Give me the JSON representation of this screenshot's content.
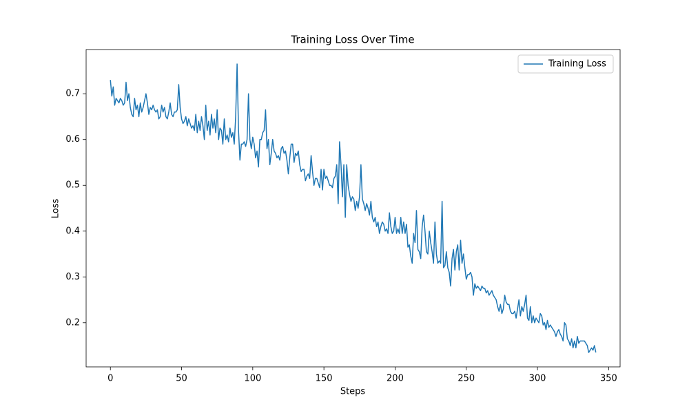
{
  "chart_data": {
    "type": "line",
    "title": "Training Loss Over Time",
    "xlabel": "Steps",
    "ylabel": "Loss",
    "x": [
      0,
      1,
      2,
      3,
      4,
      5,
      6,
      7,
      8,
      9,
      10,
      11,
      12,
      13,
      14,
      15,
      16,
      17,
      18,
      19,
      20,
      21,
      22,
      23,
      24,
      25,
      26,
      27,
      28,
      29,
      30,
      31,
      32,
      33,
      34,
      35,
      36,
      37,
      38,
      39,
      40,
      41,
      42,
      43,
      44,
      45,
      46,
      47,
      48,
      49,
      50,
      51,
      52,
      53,
      54,
      55,
      56,
      57,
      58,
      59,
      60,
      61,
      62,
      63,
      64,
      65,
      66,
      67,
      68,
      69,
      70,
      71,
      72,
      73,
      74,
      75,
      76,
      77,
      78,
      79,
      80,
      81,
      82,
      83,
      84,
      85,
      86,
      87,
      88,
      89,
      90,
      91,
      92,
      93,
      94,
      95,
      96,
      97,
      98,
      99,
      100,
      101,
      102,
      103,
      104,
      105,
      106,
      107,
      108,
      109,
      110,
      111,
      112,
      113,
      114,
      115,
      116,
      117,
      118,
      119,
      120,
      121,
      122,
      123,
      124,
      125,
      126,
      127,
      128,
      129,
      130,
      131,
      132,
      133,
      134,
      135,
      136,
      137,
      138,
      139,
      140,
      141,
      142,
      143,
      144,
      145,
      146,
      147,
      148,
      149,
      150,
      151,
      152,
      153,
      154,
      155,
      156,
      157,
      158,
      159,
      160,
      161,
      162,
      163,
      164,
      165,
      166,
      167,
      168,
      169,
      170,
      171,
      172,
      173,
      174,
      175,
      176,
      177,
      178,
      179,
      180,
      181,
      182,
      183,
      184,
      185,
      186,
      187,
      188,
      189,
      190,
      191,
      192,
      193,
      194,
      195,
      196,
      197,
      198,
      199,
      200,
      201,
      202,
      203,
      204,
      205,
      206,
      207,
      208,
      209,
      210,
      211,
      212,
      213,
      214,
      215,
      216,
      217,
      218,
      219,
      220,
      221,
      222,
      223,
      224,
      225,
      226,
      227,
      228,
      229,
      230,
      231,
      232,
      233,
      234,
      235,
      236,
      237,
      238,
      239,
      240,
      241,
      242,
      243,
      244,
      245,
      246,
      247,
      248,
      249,
      250,
      251,
      252,
      253,
      254,
      255,
      256,
      257,
      258,
      259,
      260,
      261,
      262,
      263,
      264,
      265,
      266,
      267,
      268,
      269,
      270,
      271,
      272,
      273,
      274,
      275,
      276,
      277,
      278,
      279,
      280,
      281,
      282,
      283,
      284,
      285,
      286,
      287,
      288,
      289,
      290,
      291,
      292,
      293,
      294,
      295,
      296,
      297,
      298,
      299,
      300,
      301,
      302,
      303,
      304,
      305,
      306,
      307,
      308,
      309,
      310,
      311,
      312,
      313,
      314,
      315,
      316,
      317,
      318,
      319,
      320,
      321,
      322,
      323,
      324,
      325,
      326,
      327,
      328,
      329,
      330,
      331,
      332,
      333,
      334,
      335,
      336,
      337,
      338,
      339,
      340,
      341
    ],
    "series": [
      {
        "name": "Training Loss",
        "color": "#1f77b4",
        "values": [
          0.73,
          0.695,
          0.715,
          0.675,
          0.69,
          0.685,
          0.68,
          0.69,
          0.685,
          0.675,
          0.68,
          0.725,
          0.685,
          0.7,
          0.67,
          0.655,
          0.65,
          0.69,
          0.665,
          0.675,
          0.65,
          0.68,
          0.66,
          0.67,
          0.685,
          0.7,
          0.68,
          0.655,
          0.67,
          0.665,
          0.675,
          0.665,
          0.66,
          0.665,
          0.645,
          0.65,
          0.675,
          0.66,
          0.67,
          0.65,
          0.645,
          0.66,
          0.68,
          0.655,
          0.65,
          0.66,
          0.66,
          0.665,
          0.72,
          0.67,
          0.645,
          0.635,
          0.64,
          0.65,
          0.63,
          0.645,
          0.635,
          0.625,
          0.63,
          0.62,
          0.655,
          0.615,
          0.64,
          0.62,
          0.65,
          0.63,
          0.6,
          0.675,
          0.62,
          0.64,
          0.61,
          0.655,
          0.625,
          0.645,
          0.615,
          0.665,
          0.6,
          0.625,
          0.62,
          0.59,
          0.645,
          0.6,
          0.61,
          0.595,
          0.625,
          0.605,
          0.615,
          0.59,
          0.65,
          0.765,
          0.62,
          0.555,
          0.59,
          0.59,
          0.595,
          0.585,
          0.6,
          0.7,
          0.6,
          0.58,
          0.605,
          0.59,
          0.56,
          0.575,
          0.54,
          0.6,
          0.6,
          0.615,
          0.62,
          0.665,
          0.58,
          0.6,
          0.545,
          0.57,
          0.6,
          0.575,
          0.57,
          0.56,
          0.565,
          0.555,
          0.58,
          0.585,
          0.57,
          0.575,
          0.555,
          0.525,
          0.56,
          0.59,
          0.59,
          0.55,
          0.57,
          0.565,
          0.575,
          0.545,
          0.53,
          0.535,
          0.535,
          0.51,
          0.52,
          0.525,
          0.515,
          0.565,
          0.53,
          0.5,
          0.515,
          0.515,
          0.505,
          0.495,
          0.535,
          0.49,
          0.535,
          0.515,
          0.52,
          0.51,
          0.5,
          0.5,
          0.495,
          0.515,
          0.52,
          0.545,
          0.46,
          0.595,
          0.545,
          0.475,
          0.545,
          0.43,
          0.545,
          0.5,
          0.48,
          0.465,
          0.475,
          0.47,
          0.445,
          0.465,
          0.45,
          0.475,
          0.545,
          0.47,
          0.46,
          0.445,
          0.46,
          0.45,
          0.435,
          0.465,
          0.43,
          0.42,
          0.43,
          0.41,
          0.42,
          0.395,
          0.41,
          0.42,
          0.415,
          0.4,
          0.405,
          0.395,
          0.44,
          0.41,
          0.395,
          0.4,
          0.43,
          0.395,
          0.405,
          0.395,
          0.43,
          0.395,
          0.42,
          0.395,
          0.415,
          0.365,
          0.37,
          0.345,
          0.33,
          0.395,
          0.375,
          0.445,
          0.36,
          0.355,
          0.34,
          0.41,
          0.435,
          0.4,
          0.355,
          0.35,
          0.4,
          0.375,
          0.355,
          0.33,
          0.42,
          0.35,
          0.33,
          0.335,
          0.33,
          0.465,
          0.32,
          0.325,
          0.355,
          0.32,
          0.31,
          0.28,
          0.34,
          0.36,
          0.315,
          0.355,
          0.37,
          0.315,
          0.38,
          0.33,
          0.35,
          0.32,
          0.295,
          0.305,
          0.305,
          0.31,
          0.3,
          0.26,
          0.285,
          0.275,
          0.28,
          0.275,
          0.27,
          0.28,
          0.275,
          0.275,
          0.265,
          0.27,
          0.26,
          0.265,
          0.27,
          0.26,
          0.255,
          0.25,
          0.235,
          0.225,
          0.24,
          0.22,
          0.23,
          0.26,
          0.245,
          0.24,
          0.24,
          0.225,
          0.22,
          0.22,
          0.225,
          0.21,
          0.23,
          0.25,
          0.215,
          0.235,
          0.225,
          0.24,
          0.26,
          0.21,
          0.205,
          0.235,
          0.2,
          0.215,
          0.2,
          0.21,
          0.205,
          0.2,
          0.22,
          0.215,
          0.195,
          0.2,
          0.185,
          0.205,
          0.19,
          0.195,
          0.19,
          0.185,
          0.18,
          0.17,
          0.18,
          0.185,
          0.175,
          0.17,
          0.16,
          0.2,
          0.195,
          0.165,
          0.16,
          0.15,
          0.165,
          0.145,
          0.16,
          0.145,
          0.17,
          0.155,
          0.16,
          0.16,
          0.16,
          0.16,
          0.155,
          0.15,
          0.135,
          0.14,
          0.145,
          0.14,
          0.15,
          0.135
        ]
      }
    ],
    "xlim": [
      -17.05,
      358.05
    ],
    "xticks": [
      0,
      50,
      100,
      150,
      200,
      250,
      300,
      350
    ],
    "ylim": [
      0.1035,
      0.7965
    ],
    "yticks": [
      0.2,
      0.3,
      0.4,
      0.5,
      0.6,
      0.7
    ],
    "legend": "upper right",
    "grid": false
  }
}
